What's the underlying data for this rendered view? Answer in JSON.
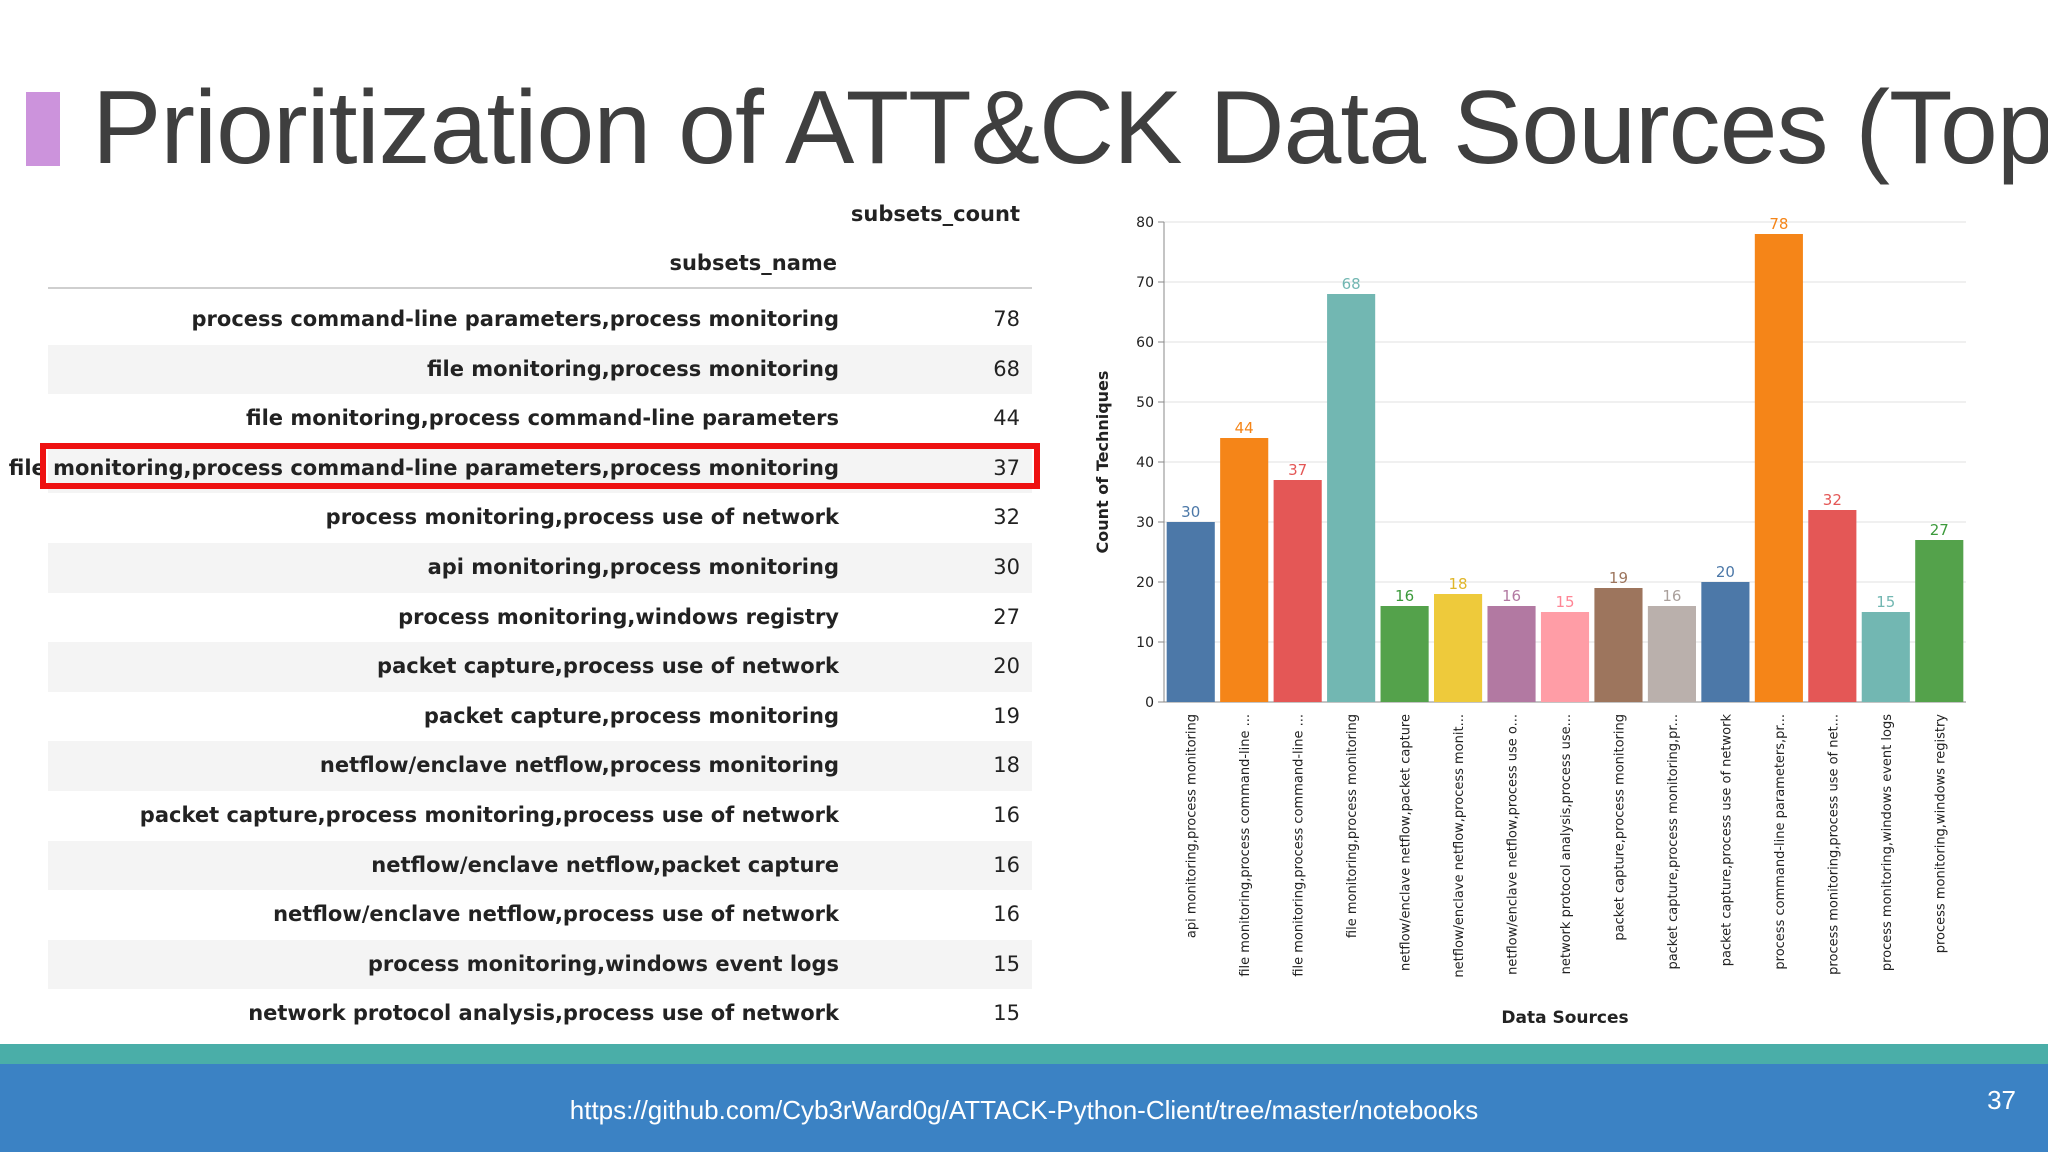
{
  "slide": {
    "title": "Prioritization of ATT&CK Data Sources (Top",
    "footer_url": "https://github.com/Cyb3rWard0g/ATTACK-Python-Client/tree/master/notebooks",
    "page_number": "37"
  },
  "table": {
    "count_header": "subsets_count",
    "name_header": "subsets_name",
    "highlighted_row": 3,
    "rows": [
      {
        "name": "process command-line parameters,process monitoring",
        "count": "78"
      },
      {
        "name": "file monitoring,process monitoring",
        "count": "68"
      },
      {
        "name": "file monitoring,process command-line parameters",
        "count": "44"
      },
      {
        "name": "file monitoring,process command-line parameters,process monitoring",
        "count": "37"
      },
      {
        "name": "process monitoring,process use of network",
        "count": "32"
      },
      {
        "name": "api monitoring,process monitoring",
        "count": "30"
      },
      {
        "name": "process monitoring,windows registry",
        "count": "27"
      },
      {
        "name": "packet capture,process use of network",
        "count": "20"
      },
      {
        "name": "packet capture,process monitoring",
        "count": "19"
      },
      {
        "name": "netflow/enclave netflow,process monitoring",
        "count": "18"
      },
      {
        "name": "packet capture,process monitoring,process use of network",
        "count": "16"
      },
      {
        "name": "netflow/enclave netflow,packet capture",
        "count": "16"
      },
      {
        "name": "netflow/enclave netflow,process use of network",
        "count": "16"
      },
      {
        "name": "process monitoring,windows event logs",
        "count": "15"
      },
      {
        "name": "network protocol analysis,process use of network",
        "count": "15"
      }
    ]
  },
  "chart_data": {
    "type": "bar",
    "title": "",
    "xlabel": "Data Sources",
    "ylabel": "Count of Techniques",
    "ylim": [
      0,
      80
    ],
    "yticks": [
      "0",
      "10",
      "20",
      "30",
      "40",
      "50",
      "60",
      "70",
      "80"
    ],
    "grid": true,
    "categories": [
      "api monitoring,process monitoring",
      "file monitoring,process command-line ...",
      "file monitoring,process command-line ...",
      "file monitoring,process monitoring",
      "netflow/enclave netflow,packet capture",
      "netflow/enclave netflow,process monit...",
      "netflow/enclave netflow,process use o...",
      "network protocol analysis,process use...",
      "packet capture,process monitoring",
      "packet capture,process monitoring,pr...",
      "packet capture,process use of network",
      "process command-line parameters,pr...",
      "process monitoring,process use of net...",
      "process monitoring,windows event logs",
      "process monitoring,windows registry"
    ],
    "values": [
      30,
      44,
      37,
      68,
      16,
      18,
      16,
      15,
      19,
      16,
      20,
      78,
      32,
      15,
      27
    ],
    "colors": [
      "#4c78a8",
      "#f58518",
      "#e45756",
      "#72b7b2",
      "#54a24b",
      "#eeca3b",
      "#b279a2",
      "#ff9da6",
      "#9d755d",
      "#bab0ac",
      "#4c78a8",
      "#f58518",
      "#e45756",
      "#72b7b2",
      "#54a24b"
    ],
    "label_colors": [
      "#4c78a8",
      "#f58518",
      "#e45756",
      "#72b7b2",
      "#3c9a3b",
      "#e0b62a",
      "#b279a2",
      "#ff8595",
      "#9d755d",
      "#aaa09c",
      "#4c78a8",
      "#f58518",
      "#e45756",
      "#72b7b2",
      "#3c9a3b"
    ]
  }
}
